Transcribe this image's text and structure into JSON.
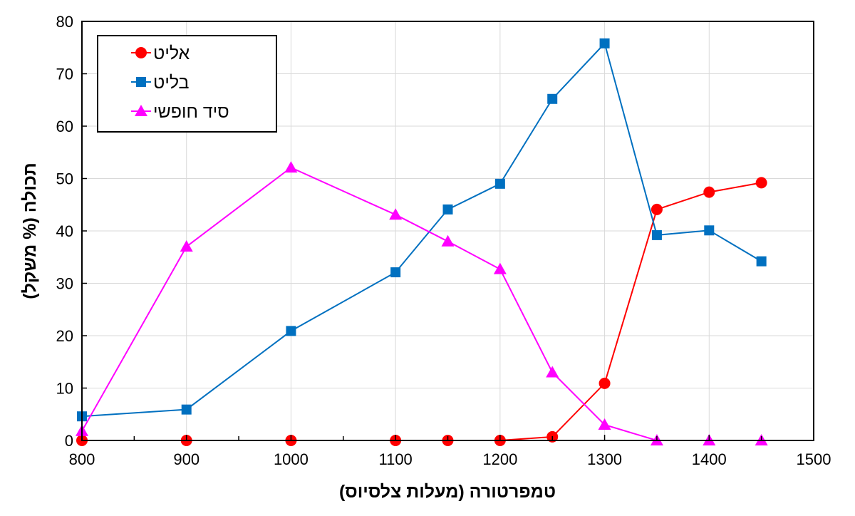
{
  "chart_data": {
    "type": "line",
    "xlabel": "טמפרטורה (מעלות צלסיוס)",
    "ylabel": "תכולה (% משקל)",
    "xlim": [
      800,
      1500
    ],
    "ylim": [
      0,
      80
    ],
    "xticks": [
      800,
      900,
      1000,
      1100,
      1200,
      1300,
      1400,
      1500
    ],
    "yticks": [
      0,
      10,
      20,
      30,
      40,
      50,
      60,
      70,
      80
    ],
    "grid": true,
    "legend_position": "top-left",
    "series": [
      {
        "name": "אליט",
        "color": "#ff0000",
        "marker": "circle",
        "x": [
          800,
          900,
          1000,
          1100,
          1150,
          1200,
          1250,
          1300,
          1350,
          1400,
          1450
        ],
        "y": [
          0,
          0,
          0,
          0,
          0,
          0,
          0.7,
          10.9,
          44.1,
          47.4,
          49.2
        ]
      },
      {
        "name": "בליט",
        "color": "#0070c0",
        "marker": "square",
        "x": [
          800,
          900,
          1000,
          1100,
          1150,
          1200,
          1250,
          1300,
          1350,
          1400,
          1450
        ],
        "y": [
          4.6,
          5.9,
          20.9,
          32.1,
          44.1,
          49.0,
          65.2,
          75.8,
          39.2,
          40.1,
          34.2
        ]
      },
      {
        "name": "סיד חופשי",
        "color": "#ff00ff",
        "marker": "triangle",
        "x": [
          800,
          900,
          1000,
          1100,
          1150,
          1200,
          1250,
          1300,
          1350,
          1400,
          1450
        ],
        "y": [
          1.8,
          37.0,
          52.1,
          43.1,
          38.0,
          32.7,
          13.0,
          3.0,
          0,
          0,
          0
        ]
      }
    ]
  }
}
